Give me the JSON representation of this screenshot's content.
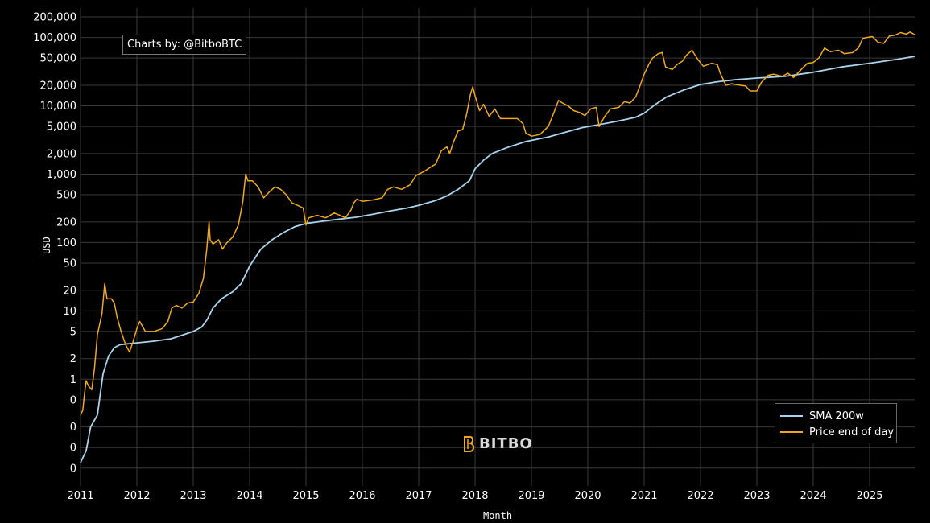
{
  "credit": "Charts by: @BitboBTC",
  "watermark": "BITBO",
  "colors": {
    "price": "#f0a81e",
    "sma": "#a8d4f0",
    "grid": "#3a3a3a",
    "background": "#000000"
  },
  "chart_data": {
    "type": "line",
    "title": "",
    "xlabel": "Month",
    "ylabel": "USD",
    "yscale": "log",
    "ylim": [
      0.04,
      200000
    ],
    "xlim": [
      2011.0,
      2025.8
    ],
    "legend_position": "bottom-right",
    "grid": true,
    "x_ticks": [
      "2011",
      "2012",
      "2013",
      "2014",
      "2015",
      "2016",
      "2017",
      "2018",
      "2019",
      "2020",
      "2021",
      "2022",
      "2023",
      "2024",
      "2025"
    ],
    "y_ticks": [
      {
        "v": 200000,
        "label": "200,000"
      },
      {
        "v": 100000,
        "label": "100,000"
      },
      {
        "v": 50000,
        "label": "50,000"
      },
      {
        "v": 20000,
        "label": "20,000"
      },
      {
        "v": 10000,
        "label": "10,000"
      },
      {
        "v": 5000,
        "label": "5,000"
      },
      {
        "v": 2000,
        "label": "2,000"
      },
      {
        "v": 1000,
        "label": "1,000"
      },
      {
        "v": 500,
        "label": "500"
      },
      {
        "v": 200,
        "label": "200"
      },
      {
        "v": 100,
        "label": "100"
      },
      {
        "v": 50,
        "label": "50"
      },
      {
        "v": 20,
        "label": "20"
      },
      {
        "v": 10,
        "label": "10"
      },
      {
        "v": 5,
        "label": "5"
      },
      {
        "v": 2,
        "label": "2"
      },
      {
        "v": 1,
        "label": "1"
      },
      {
        "v": 0.5,
        "label": "0"
      },
      {
        "v": 0.2,
        "label": "0"
      },
      {
        "v": 0.1,
        "label": "0"
      },
      {
        "v": 0.05,
        "label": "0"
      }
    ],
    "series": [
      {
        "name": "SMA 200w",
        "color": "#a8d4f0",
        "points": [
          [
            2011.0,
            0.06
          ],
          [
            2011.1,
            0.09
          ],
          [
            2011.18,
            0.2
          ],
          [
            2011.3,
            0.3
          ],
          [
            2011.4,
            1.2
          ],
          [
            2011.5,
            2.2
          ],
          [
            2011.6,
            2.9
          ],
          [
            2011.7,
            3.2
          ],
          [
            2012.0,
            3.4
          ],
          [
            2012.3,
            3.6
          ],
          [
            2012.6,
            3.9
          ],
          [
            2012.8,
            4.4
          ],
          [
            2013.0,
            5.0
          ],
          [
            2013.15,
            5.8
          ],
          [
            2013.25,
            7.5
          ],
          [
            2013.35,
            11
          ],
          [
            2013.5,
            15
          ],
          [
            2013.7,
            19
          ],
          [
            2013.85,
            25
          ],
          [
            2014.0,
            45
          ],
          [
            2014.2,
            80
          ],
          [
            2014.4,
            110
          ],
          [
            2014.6,
            140
          ],
          [
            2014.8,
            170
          ],
          [
            2015.0,
            190
          ],
          [
            2015.3,
            205
          ],
          [
            2015.6,
            220
          ],
          [
            2015.9,
            235
          ],
          [
            2016.2,
            260
          ],
          [
            2016.5,
            290
          ],
          [
            2016.8,
            320
          ],
          [
            2017.0,
            350
          ],
          [
            2017.3,
            410
          ],
          [
            2017.5,
            480
          ],
          [
            2017.7,
            600
          ],
          [
            2017.9,
            800
          ],
          [
            2018.0,
            1200
          ],
          [
            2018.15,
            1600
          ],
          [
            2018.3,
            2000
          ],
          [
            2018.6,
            2500
          ],
          [
            2018.9,
            3000
          ],
          [
            2019.3,
            3500
          ],
          [
            2019.6,
            4100
          ],
          [
            2019.9,
            4800
          ],
          [
            2020.2,
            5300
          ],
          [
            2020.5,
            5900
          ],
          [
            2020.85,
            6800
          ],
          [
            2021.0,
            7800
          ],
          [
            2021.2,
            10500
          ],
          [
            2021.4,
            13500
          ],
          [
            2021.7,
            17000
          ],
          [
            2022.0,
            20500
          ],
          [
            2022.3,
            22500
          ],
          [
            2022.6,
            24000
          ],
          [
            2023.0,
            25500
          ],
          [
            2023.5,
            27000
          ],
          [
            2024.0,
            31000
          ],
          [
            2024.5,
            37000
          ],
          [
            2025.0,
            42000
          ],
          [
            2025.5,
            48000
          ],
          [
            2025.8,
            53000
          ]
        ]
      },
      {
        "name": "Price end of day",
        "color": "#f0a81e",
        "points": [
          [
            2011.0,
            0.3
          ],
          [
            2011.04,
            0.35
          ],
          [
            2011.07,
            0.6
          ],
          [
            2011.1,
            0.95
          ],
          [
            2011.14,
            0.8
          ],
          [
            2011.2,
            0.7
          ],
          [
            2011.25,
            1.5
          ],
          [
            2011.3,
            4.5
          ],
          [
            2011.38,
            9
          ],
          [
            2011.43,
            25
          ],
          [
            2011.47,
            15
          ],
          [
            2011.55,
            15
          ],
          [
            2011.6,
            13
          ],
          [
            2011.65,
            8
          ],
          [
            2011.72,
            5
          ],
          [
            2011.8,
            3.2
          ],
          [
            2011.87,
            2.5
          ],
          [
            2011.93,
            3.5
          ],
          [
            2012.0,
            5.5
          ],
          [
            2012.05,
            7
          ],
          [
            2012.15,
            5
          ],
          [
            2012.3,
            5
          ],
          [
            2012.45,
            5.5
          ],
          [
            2012.55,
            7
          ],
          [
            2012.62,
            11
          ],
          [
            2012.7,
            12
          ],
          [
            2012.8,
            11
          ],
          [
            2012.9,
            13
          ],
          [
            2013.0,
            13.5
          ],
          [
            2013.1,
            18
          ],
          [
            2013.18,
            30
          ],
          [
            2013.24,
            80
          ],
          [
            2013.28,
            200
          ],
          [
            2013.3,
            110
          ],
          [
            2013.35,
            95
          ],
          [
            2013.45,
            110
          ],
          [
            2013.52,
            80
          ],
          [
            2013.6,
            100
          ],
          [
            2013.7,
            120
          ],
          [
            2013.8,
            180
          ],
          [
            2013.88,
            400
          ],
          [
            2013.93,
            1000
          ],
          [
            2013.97,
            800
          ],
          [
            2014.05,
            800
          ],
          [
            2014.15,
            650
          ],
          [
            2014.25,
            450
          ],
          [
            2014.35,
            550
          ],
          [
            2014.45,
            650
          ],
          [
            2014.55,
            600
          ],
          [
            2014.65,
            500
          ],
          [
            2014.75,
            380
          ],
          [
            2014.85,
            350
          ],
          [
            2014.95,
            320
          ],
          [
            2015.0,
            180
          ],
          [
            2015.05,
            230
          ],
          [
            2015.2,
            250
          ],
          [
            2015.35,
            230
          ],
          [
            2015.5,
            270
          ],
          [
            2015.6,
            250
          ],
          [
            2015.7,
            230
          ],
          [
            2015.8,
            300
          ],
          [
            2015.85,
            380
          ],
          [
            2015.9,
            430
          ],
          [
            2016.0,
            400
          ],
          [
            2016.2,
            420
          ],
          [
            2016.35,
            450
          ],
          [
            2016.45,
            600
          ],
          [
            2016.55,
            650
          ],
          [
            2016.7,
            600
          ],
          [
            2016.85,
            700
          ],
          [
            2016.95,
            950
          ],
          [
            2017.0,
            1000
          ],
          [
            2017.1,
            1100
          ],
          [
            2017.2,
            1250
          ],
          [
            2017.3,
            1400
          ],
          [
            2017.4,
            2200
          ],
          [
            2017.5,
            2500
          ],
          [
            2017.55,
            2000
          ],
          [
            2017.62,
            3000
          ],
          [
            2017.7,
            4300
          ],
          [
            2017.78,
            4500
          ],
          [
            2017.85,
            7500
          ],
          [
            2017.92,
            15000
          ],
          [
            2017.96,
            19000
          ],
          [
            2018.0,
            14000
          ],
          [
            2018.08,
            8500
          ],
          [
            2018.15,
            10500
          ],
          [
            2018.25,
            7000
          ],
          [
            2018.35,
            9000
          ],
          [
            2018.45,
            6500
          ],
          [
            2018.6,
            6500
          ],
          [
            2018.75,
            6500
          ],
          [
            2018.85,
            5500
          ],
          [
            2018.9,
            4000
          ],
          [
            2019.0,
            3600
          ],
          [
            2019.15,
            3800
          ],
          [
            2019.3,
            5000
          ],
          [
            2019.4,
            8000
          ],
          [
            2019.48,
            12000
          ],
          [
            2019.55,
            11000
          ],
          [
            2019.65,
            10000
          ],
          [
            2019.75,
            8500
          ],
          [
            2019.85,
            8000
          ],
          [
            2019.95,
            7200
          ],
          [
            2020.05,
            9000
          ],
          [
            2020.15,
            9500
          ],
          [
            2020.2,
            5000
          ],
          [
            2020.3,
            7000
          ],
          [
            2020.4,
            9000
          ],
          [
            2020.55,
            9500
          ],
          [
            2020.65,
            11500
          ],
          [
            2020.75,
            11000
          ],
          [
            2020.85,
            13500
          ],
          [
            2020.92,
            19000
          ],
          [
            2021.0,
            29000
          ],
          [
            2021.08,
            40000
          ],
          [
            2021.15,
            50000
          ],
          [
            2021.25,
            58000
          ],
          [
            2021.32,
            60000
          ],
          [
            2021.38,
            37000
          ],
          [
            2021.5,
            34000
          ],
          [
            2021.58,
            40000
          ],
          [
            2021.68,
            45000
          ],
          [
            2021.75,
            55000
          ],
          [
            2021.85,
            65000
          ],
          [
            2021.95,
            48000
          ],
          [
            2022.05,
            38000
          ],
          [
            2022.2,
            42000
          ],
          [
            2022.3,
            40000
          ],
          [
            2022.35,
            30000
          ],
          [
            2022.45,
            20000
          ],
          [
            2022.55,
            21000
          ],
          [
            2022.7,
            20000
          ],
          [
            2022.8,
            19500
          ],
          [
            2022.88,
            16500
          ],
          [
            2023.0,
            16500
          ],
          [
            2023.08,
            22000
          ],
          [
            2023.2,
            28000
          ],
          [
            2023.3,
            29000
          ],
          [
            2023.45,
            27000
          ],
          [
            2023.55,
            30000
          ],
          [
            2023.65,
            26000
          ],
          [
            2023.8,
            35000
          ],
          [
            2023.9,
            42000
          ],
          [
            2024.0,
            43000
          ],
          [
            2024.1,
            50000
          ],
          [
            2024.2,
            70000
          ],
          [
            2024.3,
            62000
          ],
          [
            2024.45,
            65000
          ],
          [
            2024.55,
            58000
          ],
          [
            2024.7,
            60000
          ],
          [
            2024.8,
            70000
          ],
          [
            2024.88,
            97000
          ],
          [
            2024.95,
            100000
          ],
          [
            2025.05,
            103000
          ],
          [
            2025.15,
            85000
          ],
          [
            2025.25,
            82000
          ],
          [
            2025.35,
            105000
          ],
          [
            2025.45,
            108000
          ],
          [
            2025.55,
            118000
          ],
          [
            2025.65,
            112000
          ],
          [
            2025.72,
            120000
          ],
          [
            2025.8,
            110000
          ]
        ]
      }
    ]
  }
}
